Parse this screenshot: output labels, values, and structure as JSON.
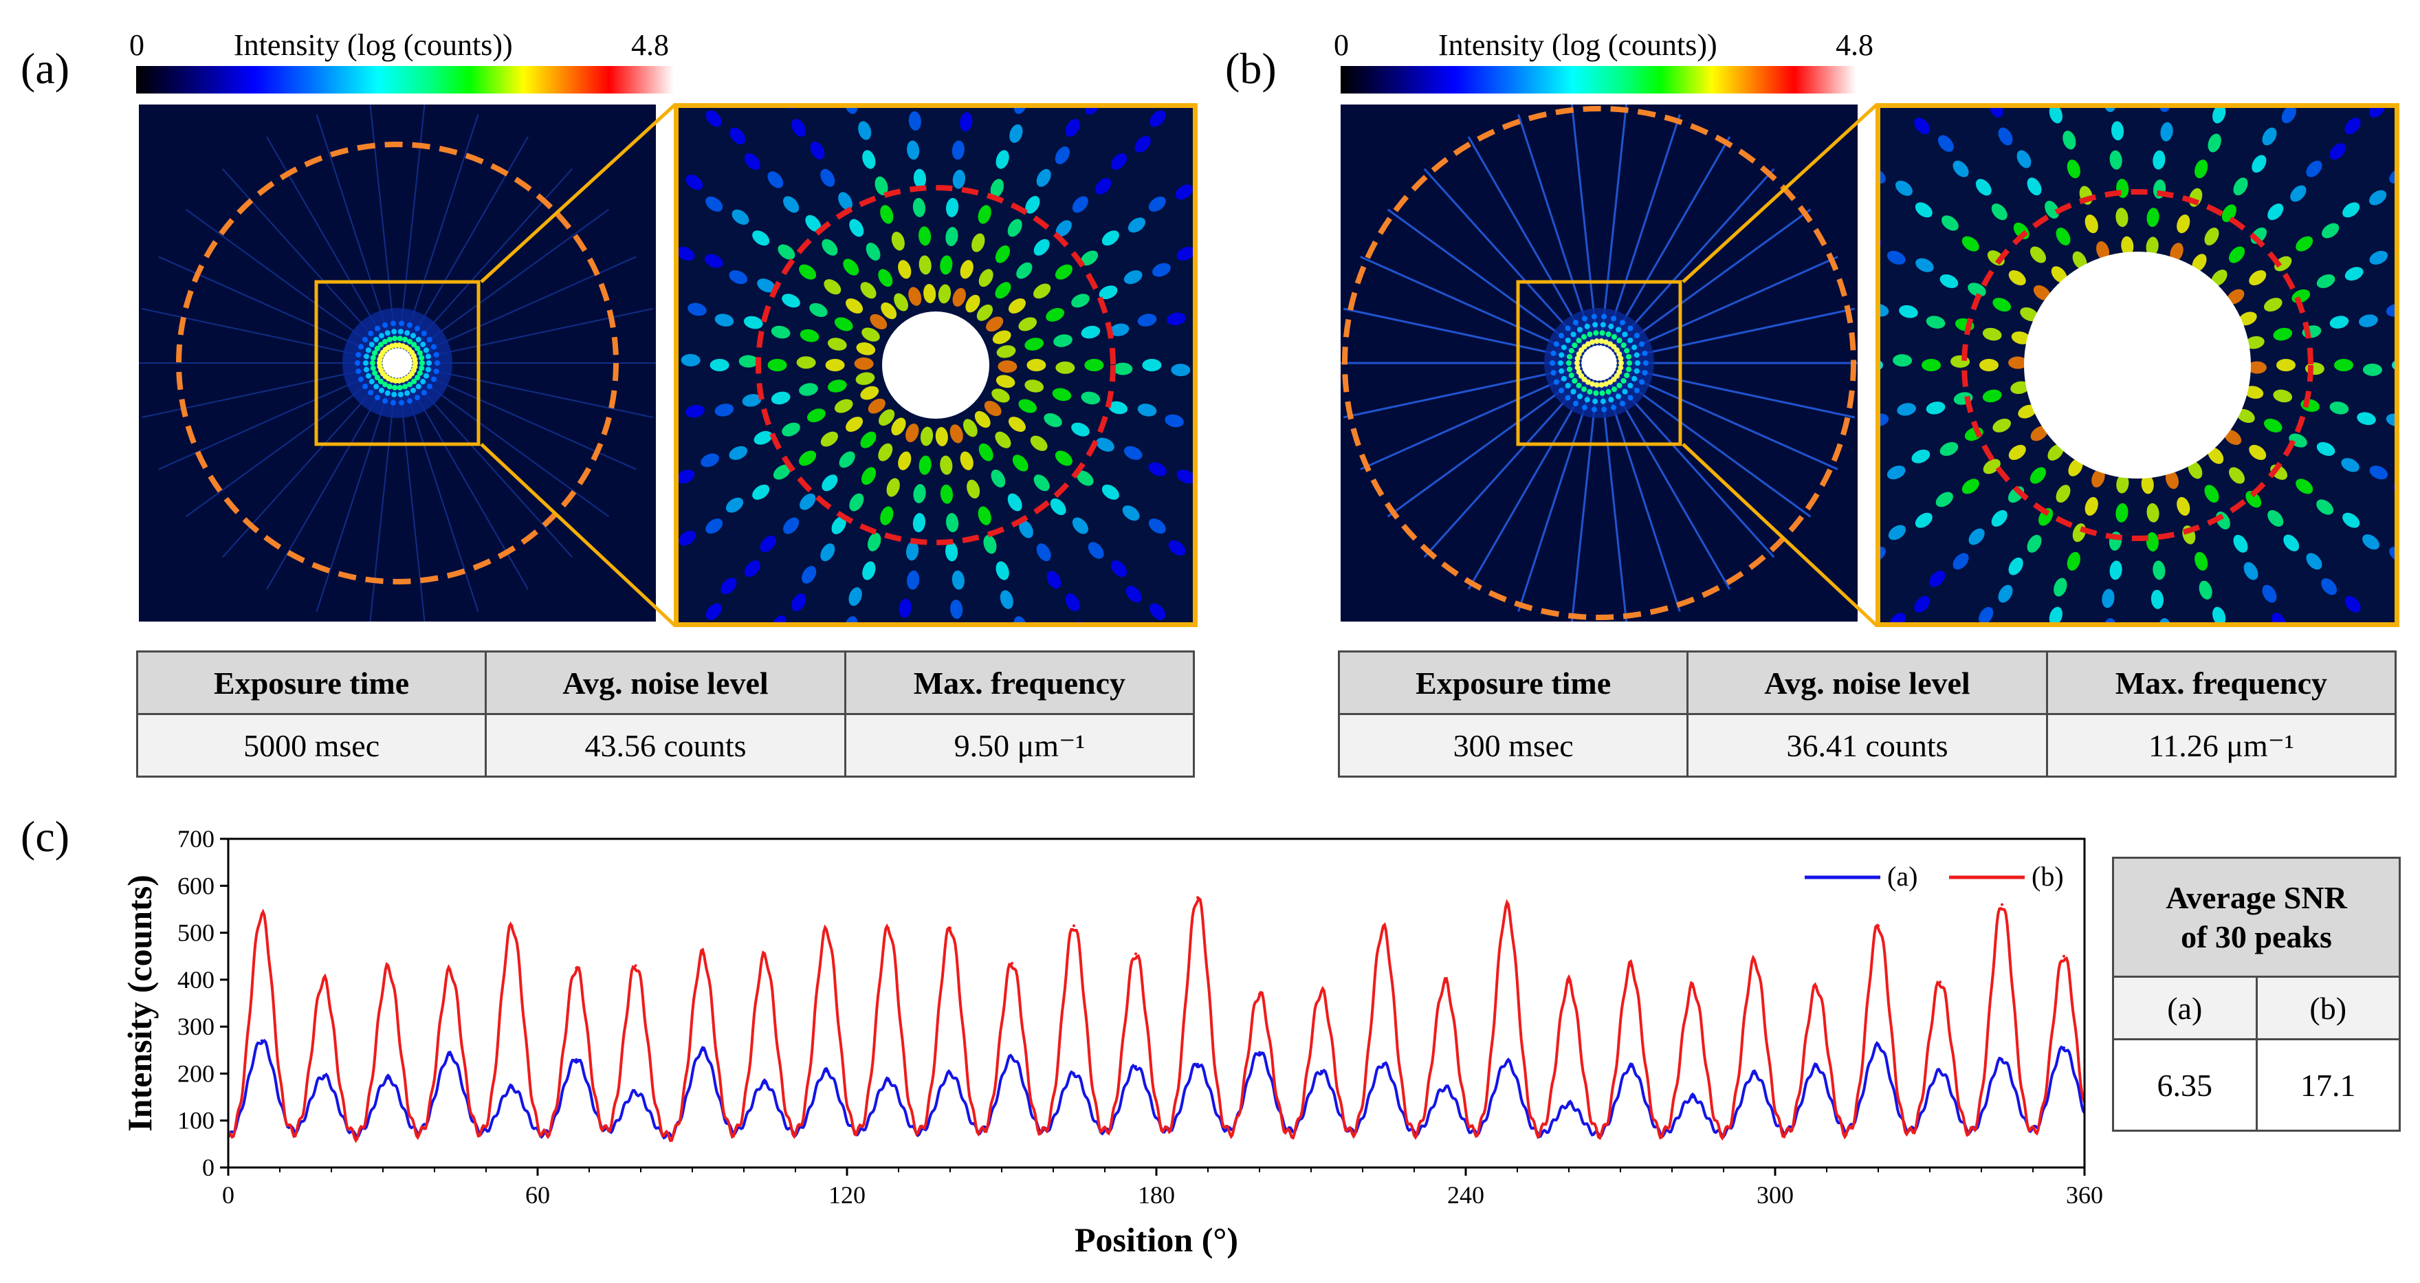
{
  "figure": {
    "panels": [
      {
        "label": "(a)",
        "colorbar": {
          "title": "Intensity (log (counts))",
          "min": "0",
          "max": "4.8"
        },
        "table": {
          "headers": [
            "Exposure time",
            "Avg. noise level",
            "Max. frequency"
          ],
          "values": [
            "5000 msec",
            "43.56 counts",
            "9.50 μm⁻¹"
          ]
        }
      },
      {
        "label": "(b)",
        "colorbar": {
          "title": "Intensity (log (counts))",
          "min": "0",
          "max": "4.8"
        },
        "table": {
          "headers": [
            "Exposure time",
            "Avg. noise level",
            "Max. frequency"
          ],
          "values": [
            "300 msec",
            "36.41 counts",
            "11.26 μm⁻¹"
          ]
        }
      }
    ],
    "panel_c_label": "(c)",
    "snr_table": {
      "title_line1": "Average SNR",
      "title_line2": "of 30 peaks",
      "col_a": "(a)",
      "col_b": "(b)",
      "val_a": "6.35",
      "val_b": "17.1"
    },
    "colors": {
      "series_a": "#1414e6",
      "series_b": "#ee1c1c",
      "frame": "#f5b008",
      "circle_outer": "#f5832a",
      "circle_inner": "#e81e1e"
    }
  },
  "chart_data": {
    "type": "line",
    "xlabel": "Position (°)",
    "ylabel": "Intensity (counts)",
    "xlim": [
      0,
      360
    ],
    "ylim": [
      0,
      700
    ],
    "xticks": [
      0,
      60,
      120,
      180,
      240,
      300,
      360
    ],
    "yticks": [
      0,
      100,
      200,
      300,
      400,
      500,
      600,
      700
    ],
    "legend_position": "top-right",
    "series": [
      {
        "name": "(a)",
        "peak_positions": [
          6.5,
          18.5,
          31,
          43,
          55,
          67.5,
          79,
          92,
          104,
          116,
          128,
          140,
          152,
          164,
          176,
          188,
          200,
          212,
          224,
          236,
          248,
          260,
          272,
          284,
          296,
          308,
          320,
          332,
          344,
          356
        ],
        "peak_values": [
          270,
          195,
          190,
          240,
          170,
          230,
          160,
          250,
          180,
          205,
          185,
          200,
          235,
          200,
          215,
          220,
          245,
          205,
          220,
          170,
          225,
          135,
          215,
          150,
          200,
          215,
          260,
          205,
          230,
          255
        ],
        "baseline": 55
      },
      {
        "name": "(b)",
        "peak_positions": [
          6.5,
          18.5,
          31,
          43,
          55,
          67.5,
          79,
          92,
          104,
          116,
          128,
          140,
          152,
          164,
          176,
          188,
          200,
          212,
          224,
          236,
          248,
          260,
          272,
          284,
          296,
          308,
          320,
          332,
          344,
          356
        ],
        "peak_values": [
          540,
          400,
          425,
          420,
          515,
          425,
          430,
          455,
          450,
          505,
          510,
          510,
          435,
          515,
          455,
          575,
          370,
          375,
          510,
          395,
          555,
          395,
          430,
          385,
          440,
          385,
          515,
          395,
          560,
          450
        ],
        "baseline": 55
      }
    ]
  }
}
